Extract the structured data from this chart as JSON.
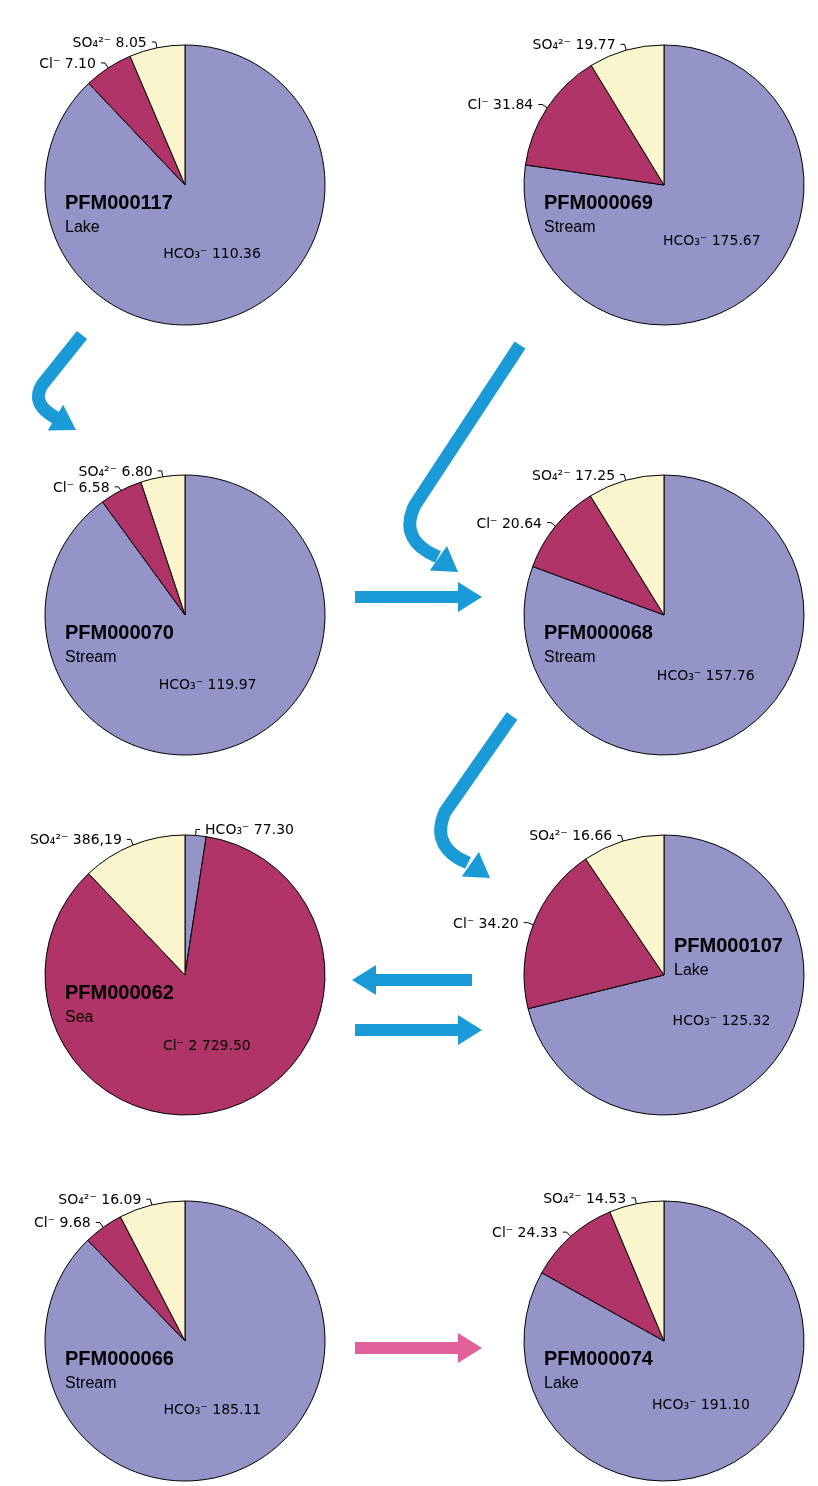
{
  "chart_data": [
    {
      "type": "pie",
      "title": "PFM000117",
      "subtitle": "Lake",
      "categories": [
        "HCO₃⁻",
        "Cl⁻",
        "SO₄²⁻"
      ],
      "values": [
        110.36,
        7.1,
        8.05
      ],
      "value_labels": [
        "110.36",
        "7.10",
        "8.05"
      ],
      "colors": [
        "#9494c8",
        "#b03468",
        "#faf5cc"
      ]
    },
    {
      "type": "pie",
      "title": "PFM000069",
      "subtitle": "Stream",
      "categories": [
        "HCO₃⁻",
        "Cl⁻",
        "SO₄²⁻"
      ],
      "values": [
        175.67,
        31.84,
        19.77
      ],
      "value_labels": [
        "175.67",
        "31.84",
        "19.77"
      ],
      "colors": [
        "#9494c8",
        "#b03468",
        "#faf5cc"
      ]
    },
    {
      "type": "pie",
      "title": "PFM000070",
      "subtitle": "Stream",
      "categories": [
        "HCO₃⁻",
        "Cl⁻",
        "SO₄²⁻"
      ],
      "values": [
        119.97,
        6.58,
        6.8
      ],
      "value_labels": [
        "119.97",
        "6.58",
        "6.80"
      ],
      "colors": [
        "#9494c8",
        "#b03468",
        "#faf5cc"
      ]
    },
    {
      "type": "pie",
      "title": "PFM000068",
      "subtitle": "Stream",
      "categories": [
        "HCO₃⁻",
        "Cl⁻",
        "SO₄²⁻"
      ],
      "values": [
        157.76,
        20.64,
        17.25
      ],
      "value_labels": [
        "157.76",
        "20.64",
        "17.25"
      ],
      "colors": [
        "#9494c8",
        "#b03468",
        "#faf5cc"
      ]
    },
    {
      "type": "pie",
      "title": "PFM000062",
      "subtitle": "Sea",
      "categories": [
        "HCO₃⁻",
        "Cl⁻",
        "SO₄²⁻"
      ],
      "values": [
        77.3,
        2729.5,
        386.19
      ],
      "value_labels": [
        "77.30",
        "2 729.50",
        "386,19"
      ],
      "colors": [
        "#9494c8",
        "#b03468",
        "#faf5cc"
      ]
    },
    {
      "type": "pie",
      "title": "PFM000107",
      "subtitle": "Lake",
      "categories": [
        "HCO₃⁻",
        "Cl⁻",
        "SO₄²⁻"
      ],
      "values": [
        125.32,
        34.2,
        16.66
      ],
      "value_labels": [
        "125.32",
        "34.20",
        "16.66"
      ],
      "colors": [
        "#9494c8",
        "#b03468",
        "#faf5cc"
      ]
    },
    {
      "type": "pie",
      "title": "PFM000066",
      "subtitle": "Stream",
      "categories": [
        "HCO₃⁻",
        "Cl⁻",
        "SO₄²⁻"
      ],
      "values": [
        185.11,
        9.68,
        16.09
      ],
      "value_labels": [
        "185.11",
        "9.68",
        "16.09"
      ],
      "colors": [
        "#9494c8",
        "#b03468",
        "#faf5cc"
      ]
    },
    {
      "type": "pie",
      "title": "PFM000074",
      "subtitle": "Lake",
      "categories": [
        "HCO₃⁻",
        "Cl⁻",
        "SO₄²⁻"
      ],
      "values": [
        191.1,
        24.33,
        14.53
      ],
      "value_labels": [
        "191.10",
        "24.33",
        "14.53"
      ],
      "colors": [
        "#9494c8",
        "#b03468",
        "#faf5cc"
      ]
    }
  ]
}
